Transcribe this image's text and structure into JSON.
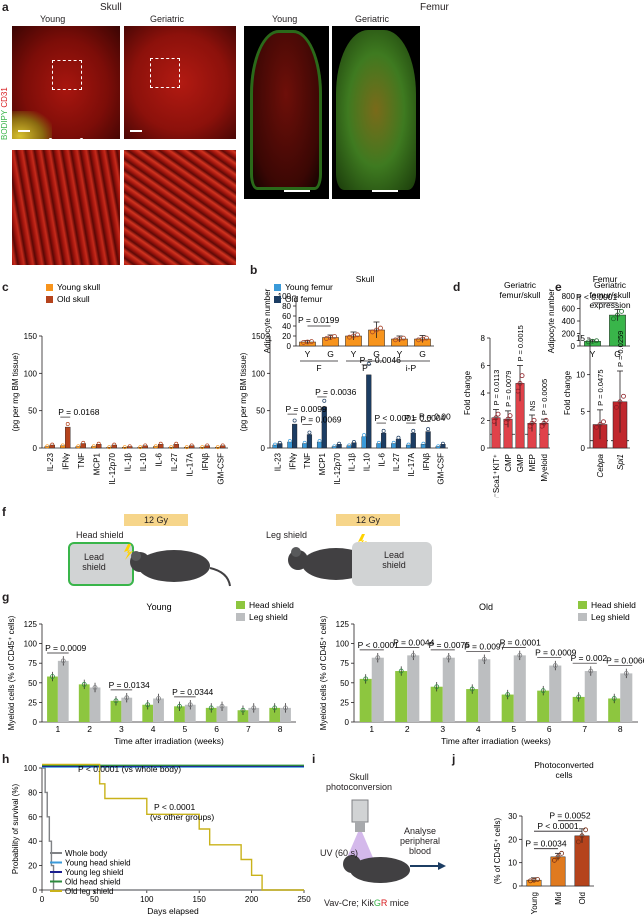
{
  "panels": {
    "a": {
      "letter": "a",
      "skull_header": "Skull",
      "femur_header": "Femur",
      "col_young": "Young",
      "col_geriatric": "Geriatric",
      "stain_bodipy": "BODIPY",
      "stain_cd31": "CD31",
      "colors": {
        "bodipy": "#39b54a",
        "cd31": "#d7191c"
      }
    },
    "b": {
      "letter": "b"
    },
    "c": {
      "letter": "c"
    },
    "d": {
      "letter": "d"
    },
    "e": {
      "letter": "e"
    },
    "f": {
      "letter": "f",
      "dose": "12 Gy",
      "head_shield": "Head shield",
      "leg_shield": "Leg shield",
      "lead_shield": "Lead shield"
    },
    "g": {
      "letter": "g"
    },
    "h": {
      "letter": "h"
    },
    "i": {
      "letter": "i",
      "title": "Skull photoconversion",
      "uv": "UV (60 s)",
      "analyse": "Analyse peripheral blood",
      "mice_prefix": "Vav-Cre; Kik",
      "mice_g": "G",
      "mice_r": "R",
      "mice_suffix": " mice"
    },
    "j": {
      "letter": "j"
    }
  },
  "chart_data": [
    {
      "id": "b-skull",
      "type": "bar",
      "title": "Skull",
      "ylabel": "Adipocyte number",
      "ylim": [
        0,
        100
      ],
      "yticks": [
        0,
        20,
        40,
        60,
        80,
        100
      ],
      "groups": [
        "F",
        "P",
        "i-P"
      ],
      "categories": [
        "Y",
        "G",
        "Y",
        "G",
        "Y",
        "G"
      ],
      "values": [
        8,
        17,
        20,
        32,
        14,
        14
      ],
      "errors": [
        3,
        5,
        8,
        16,
        6,
        7
      ],
      "annotations": [
        {
          "text": "P = 0.0199",
          "bars": [
            0,
            1
          ]
        }
      ],
      "colors": {
        "Y": "#f7941d",
        "G": "#f7941d"
      }
    },
    {
      "id": "b-femur",
      "type": "bar",
      "title": "Femur",
      "ylabel": "Adipocyte number",
      "ylim": [
        0,
        800
      ],
      "yticks": [
        0,
        200,
        400,
        600,
        800
      ],
      "categories": [
        "Y",
        "G"
      ],
      "values": [
        75,
        495
      ],
      "errors": [
        20,
        90
      ],
      "annotations": [
        {
          "text": "P < 0.0001",
          "bars": [
            0,
            1
          ]
        }
      ],
      "colors": {
        "Y": "#39b54a",
        "G": "#39b54a"
      }
    },
    {
      "id": "c-skull",
      "type": "bar",
      "ylabel": "(pg per mg BM tissue)",
      "ylim": [
        0,
        150
      ],
      "yticks": [
        0,
        50,
        100,
        150
      ],
      "categories": [
        "IL-23",
        "IFNγ",
        "TNF",
        "MCP1",
        "IL-12p70",
        "IL-1β",
        "IL-10",
        "IL-6",
        "IL-27",
        "IL-17A",
        "IFNβ",
        "GM-CSF"
      ],
      "series": [
        {
          "name": "Young skull",
          "color": "#f7941d",
          "values": [
            2,
            3,
            2,
            2,
            1,
            1,
            1,
            2,
            1,
            1,
            1,
            1
          ]
        },
        {
          "name": "Old skull",
          "color": "#b5431c",
          "values": [
            4,
            28,
            6,
            5,
            4,
            2,
            3,
            5,
            5,
            3,
            3,
            3
          ]
        }
      ],
      "annotations": [
        {
          "text": "P = 0.0168",
          "category": 1
        }
      ]
    },
    {
      "id": "c-femur",
      "type": "bar",
      "ylabel": "(pg per mg BM tissue)",
      "ylim": [
        0,
        150
      ],
      "yticks": [
        0,
        50,
        100,
        150
      ],
      "categories": [
        "IL-23",
        "IFNγ",
        "TNF",
        "MCP1",
        "IL-12p70",
        "IL-1β",
        "IL-10",
        "IL-6",
        "IL-27",
        "IL-17A",
        "IFNβ",
        "GM-CSF"
      ],
      "series": [
        {
          "name": "Young femur",
          "color": "#3a9ad9",
          "values": [
            4,
            8,
            6,
            8,
            2,
            3,
            15,
            6,
            6,
            4,
            5,
            2
          ]
        },
        {
          "name": "Old femur",
          "color": "#1c3d63",
          "values": [
            6,
            32,
            18,
            55,
            5,
            7,
            98,
            20,
            12,
            20,
            22,
            5
          ]
        }
      ],
      "annotations": [
        {
          "text": "P = 0.0099",
          "category": 1
        },
        {
          "text": "P = 0.0069",
          "category": 2
        },
        {
          "text": "P = 0.0036",
          "category": 3
        },
        {
          "text": "P = 0.0046",
          "category": 6
        },
        {
          "text": "P < 0.0001",
          "category": 7
        },
        {
          "text": "P = 0.0004",
          "category": 9
        },
        {
          "text": "P = 0.006",
          "category": 10
        }
      ]
    },
    {
      "id": "d",
      "type": "bar",
      "title": "Geriatric femur/skull",
      "ylabel": "Fold change",
      "ylim": [
        0,
        8
      ],
      "yticks": [
        0,
        2,
        4,
        6,
        8
      ],
      "reference_line": 1,
      "categories": [
        "Lin⁻Sca1⁺KIT⁺",
        "CMP",
        "GMP",
        "MEP",
        "Myeloid"
      ],
      "values": [
        2.2,
        2.1,
        4.7,
        1.8,
        1.8
      ],
      "errors": [
        0.6,
        0.6,
        1.3,
        0.6,
        0.3
      ],
      "annotations": [
        "P = 0.0113",
        "P = 0.0079",
        "P = 0.0015",
        "NS",
        "P = 0.0005"
      ],
      "color": "#e0424a"
    },
    {
      "id": "e",
      "type": "bar",
      "title": "Geriatric femur/skull expression",
      "ylabel": "Fold change",
      "ylim": [
        0,
        15
      ],
      "yticks": [
        0,
        5,
        10,
        15
      ],
      "reference_line": 1,
      "categories": [
        "Cebpa",
        "Spi1"
      ],
      "values": [
        3.2,
        6.3
      ],
      "errors": [
        2.0,
        4.2
      ],
      "annotations": [
        "P = 0.0475",
        "P = 0.0259"
      ],
      "color": "#c0272d"
    },
    {
      "id": "g-young",
      "type": "bar",
      "title": "Young",
      "ylabel": "Myeloid cells (% of CD45⁺ cells)",
      "xlabel": "Time after irradiation (weeks)",
      "ylim": [
        0,
        125
      ],
      "yticks": [
        0,
        25,
        50,
        75,
        100,
        125
      ],
      "categories": [
        "1",
        "2",
        "3",
        "4",
        "5",
        "6",
        "7",
        "8"
      ],
      "series": [
        {
          "name": "Head shield",
          "color": "#8dc63f",
          "values": [
            58,
            48,
            27,
            22,
            20,
            18,
            15,
            18
          ]
        },
        {
          "name": "Leg shield",
          "color": "#bcbec0",
          "values": [
            78,
            44,
            31,
            30,
            22,
            20,
            18,
            18
          ]
        }
      ],
      "annotations": [
        {
          "text": "P = 0.0009",
          "category": 0
        },
        {
          "text": "P = 0.0134",
          "category": 2
        },
        {
          "text": "P = 0.0344",
          "category": 4
        }
      ]
    },
    {
      "id": "g-old",
      "type": "bar",
      "title": "Old",
      "ylabel": "Myeloid cells (% of CD45⁺ cells)",
      "xlabel": "Time after irradiation (weeks)",
      "ylim": [
        0,
        125
      ],
      "yticks": [
        0,
        25,
        50,
        75,
        100,
        125
      ],
      "categories": [
        "1",
        "2",
        "3",
        "4",
        "5",
        "6",
        "7",
        "8"
      ],
      "series": [
        {
          "name": "Head shield",
          "color": "#8dc63f",
          "values": [
            55,
            65,
            45,
            42,
            35,
            40,
            32,
            30
          ]
        },
        {
          "name": "Leg shield",
          "color": "#bcbec0",
          "values": [
            82,
            85,
            82,
            80,
            85,
            72,
            65,
            62
          ]
        }
      ],
      "annotations": [
        {
          "text": "P < 0.0001",
          "category": 0
        },
        {
          "text": "P = 0.0044",
          "category": 1
        },
        {
          "text": "P = 0.0075",
          "category": 2
        },
        {
          "text": "P = 0.0097",
          "category": 3
        },
        {
          "text": "P = 0.0001",
          "category": 4
        },
        {
          "text": "P = 0.0009",
          "category": 5
        },
        {
          "text": "P = 0.002",
          "category": 6
        },
        {
          "text": "P = 0.0066",
          "category": 7
        }
      ]
    },
    {
      "id": "h",
      "type": "line",
      "ylabel": "Probability of survival (%)",
      "xlabel": "Days elapsed",
      "xlim": [
        0,
        250
      ],
      "ylim": [
        0,
        100
      ],
      "xticks": [
        0,
        50,
        100,
        150,
        200,
        250
      ],
      "yticks": [
        0,
        20,
        40,
        60,
        80,
        100
      ],
      "series": [
        {
          "name": "Whole body",
          "color": "#808285",
          "x": [
            0,
            3,
            5,
            7,
            9,
            11,
            250
          ],
          "y": [
            100,
            80,
            60,
            40,
            20,
            0,
            0
          ]
        },
        {
          "name": "Young head shield",
          "color": "#3a9ad9",
          "x": [
            0,
            250
          ],
          "y": [
            100,
            100
          ]
        },
        {
          "name": "Young leg shield",
          "color": "#1b1f8f",
          "x": [
            0,
            250
          ],
          "y": [
            100,
            100
          ]
        },
        {
          "name": "Old head shield",
          "color": "#2e8b3e",
          "x": [
            0,
            250
          ],
          "y": [
            100,
            100
          ]
        },
        {
          "name": "Old leg shield",
          "color": "#c9b21a",
          "x": [
            0,
            50,
            55,
            60,
            100,
            140,
            150,
            160,
            180,
            190,
            200,
            210,
            250
          ],
          "y": [
            100,
            100,
            87,
            75,
            62,
            62,
            50,
            37,
            37,
            25,
            12,
            0,
            0
          ]
        }
      ],
      "annotations": [
        {
          "text": "P < 0.0001 (vs whole body)"
        },
        {
          "text": "P < 0.0001"
        },
        {
          "text": "(vs other groups)"
        }
      ]
    },
    {
      "id": "j",
      "type": "bar",
      "title": "Photoconverted cells",
      "ylabel": "(% of CD45⁺ cells)",
      "ylim": [
        0,
        30
      ],
      "yticks": [
        0,
        10,
        20,
        30
      ],
      "categories": [
        "Young",
        "Mid",
        "Old"
      ],
      "values": [
        2.5,
        12.5,
        21.5
      ],
      "errors": [
        1,
        1.5,
        3
      ],
      "colors": [
        "#f7941d",
        "#e07a1f",
        "#b5431c"
      ],
      "annotations": [
        {
          "text": "P = 0.0034",
          "bars": [
            0,
            1
          ]
        },
        {
          "text": "P < 0.0001",
          "bars": [
            0,
            2
          ]
        },
        {
          "text": "P = 0.0052",
          "bars": [
            1,
            2
          ]
        }
      ]
    }
  ]
}
